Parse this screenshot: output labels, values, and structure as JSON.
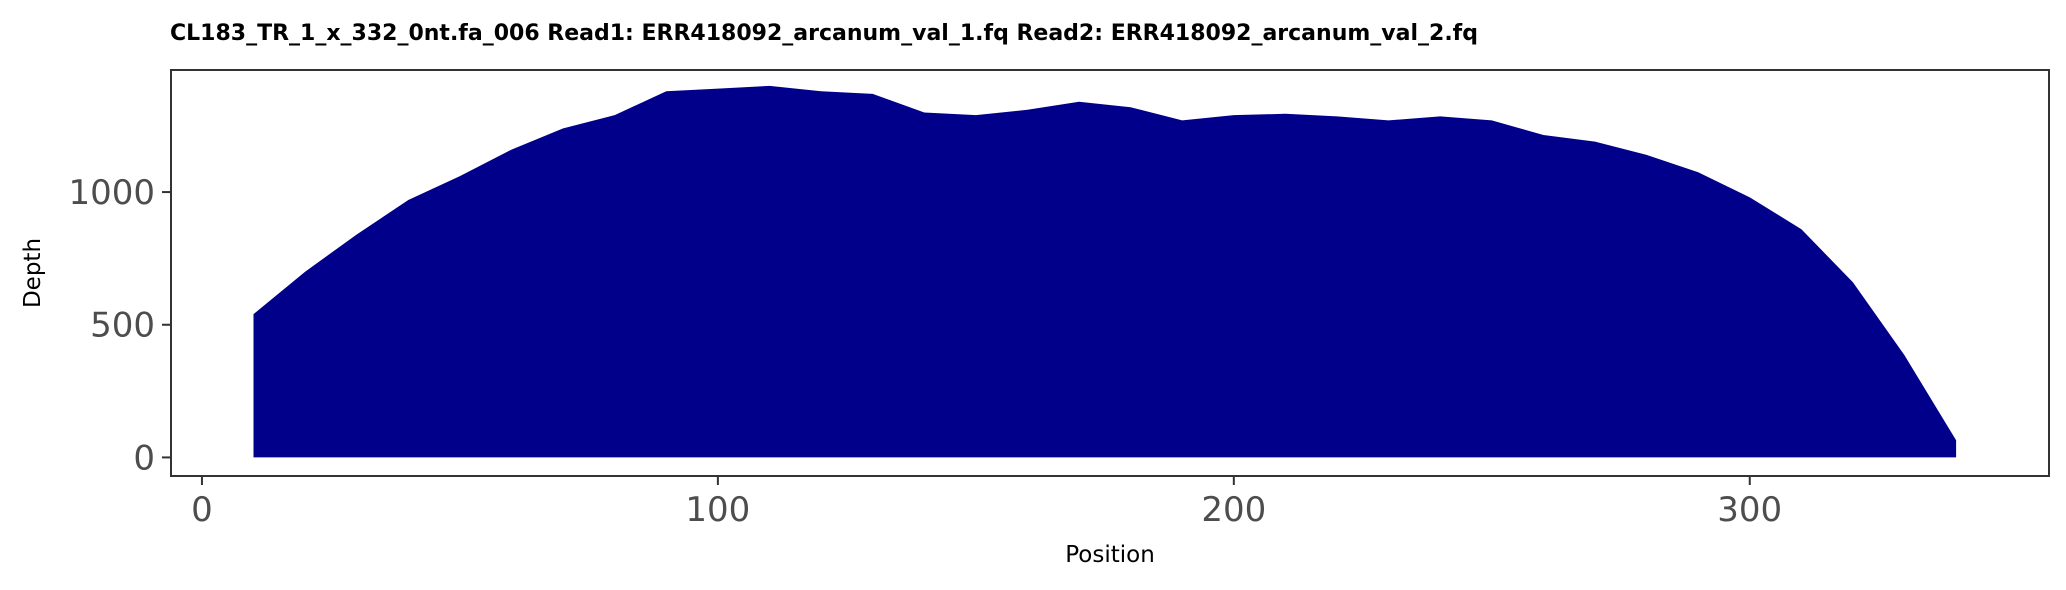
{
  "chart_data": {
    "type": "area",
    "title": "CL183_TR_1_x_332_0nt.fa_006   Read1: ERR418092_arcanum_val_1.fq   Read2: ERR418092_arcanum_val_2.fq",
    "xlabel": "Position",
    "ylabel": "Depth",
    "xlim": [
      -6,
      358
    ],
    "ylim": [
      -70,
      1460
    ],
    "x_ticks": [
      0,
      100,
      200,
      300
    ],
    "y_ticks": [
      0,
      500,
      1000
    ],
    "grid": false,
    "legend": "none",
    "fill_color": "#00008B",
    "series": [
      {
        "x": [
          10,
          20,
          30,
          40,
          50,
          60,
          70,
          80,
          90,
          100,
          110,
          120,
          130,
          140,
          150,
          160,
          170,
          180,
          190,
          200,
          210,
          220,
          230,
          240,
          250,
          260,
          270,
          280,
          290,
          300,
          310,
          320,
          330,
          340
        ],
        "values": [
          540,
          700,
          840,
          970,
          1060,
          1160,
          1240,
          1290,
          1380,
          1390,
          1400,
          1380,
          1370,
          1300,
          1290,
          1310,
          1340,
          1320,
          1270,
          1290,
          1295,
          1285,
          1270,
          1285,
          1270,
          1215,
          1190,
          1140,
          1075,
          980,
          860,
          660,
          385,
          65
        ]
      }
    ]
  }
}
